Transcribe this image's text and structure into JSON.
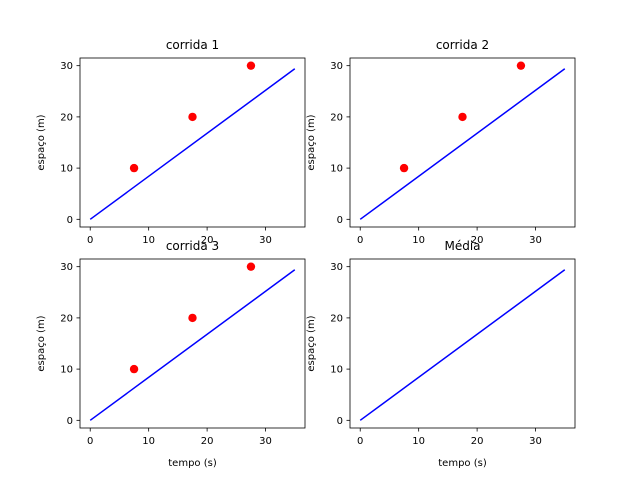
{
  "chart_data": [
    {
      "type": "scatter",
      "title": "corrida 1",
      "xlabel": "",
      "ylabel": "espaço (m)",
      "xlim": [
        -1.75,
        36.75
      ],
      "ylim": [
        -1.5,
        31.5
      ],
      "xticks": [
        0,
        10,
        20,
        30
      ],
      "yticks": [
        0,
        10,
        20,
        30
      ],
      "grid": false,
      "series": [
        {
          "type": "scatter",
          "color": "#ff0000",
          "x": [
            7.5,
            17.5,
            27.5
          ],
          "y": [
            10,
            20,
            30
          ]
        },
        {
          "type": "line",
          "color": "#0000ff",
          "x": [
            0,
            35
          ],
          "y": [
            0,
            29.4
          ]
        }
      ]
    },
    {
      "type": "scatter",
      "title": "corrida 2",
      "xlabel": "",
      "ylabel": "espaço (m)",
      "xlim": [
        -1.75,
        36.75
      ],
      "ylim": [
        -1.5,
        31.5
      ],
      "xticks": [
        0,
        10,
        20,
        30
      ],
      "yticks": [
        0,
        10,
        20,
        30
      ],
      "grid": false,
      "series": [
        {
          "type": "scatter",
          "color": "#ff0000",
          "x": [
            7.5,
            17.5,
            27.5
          ],
          "y": [
            10,
            20,
            30
          ]
        },
        {
          "type": "line",
          "color": "#0000ff",
          "x": [
            0,
            35
          ],
          "y": [
            0,
            29.4
          ]
        }
      ]
    },
    {
      "type": "scatter",
      "title": "corrida 3",
      "xlabel": "tempo (s)",
      "ylabel": "espaço (m)",
      "xlim": [
        -1.75,
        36.75
      ],
      "ylim": [
        -1.5,
        31.5
      ],
      "xticks": [
        0,
        10,
        20,
        30
      ],
      "yticks": [
        0,
        10,
        20,
        30
      ],
      "grid": false,
      "series": [
        {
          "type": "scatter",
          "color": "#ff0000",
          "x": [
            7.5,
            17.5,
            27.5
          ],
          "y": [
            10,
            20,
            30
          ]
        },
        {
          "type": "line",
          "color": "#0000ff",
          "x": [
            0,
            35
          ],
          "y": [
            0,
            29.4
          ]
        }
      ]
    },
    {
      "type": "line",
      "title": "Média",
      "xlabel": "tempo (s)",
      "ylabel": "espaço (m)",
      "xlim": [
        -1.75,
        36.75
      ],
      "ylim": [
        -1.5,
        31.5
      ],
      "xticks": [
        0,
        10,
        20,
        30
      ],
      "yticks": [
        0,
        10,
        20,
        30
      ],
      "grid": false,
      "series": [
        {
          "type": "line",
          "color": "#0000ff",
          "x": [
            0,
            35
          ],
          "y": [
            0,
            29.4
          ]
        }
      ]
    }
  ]
}
